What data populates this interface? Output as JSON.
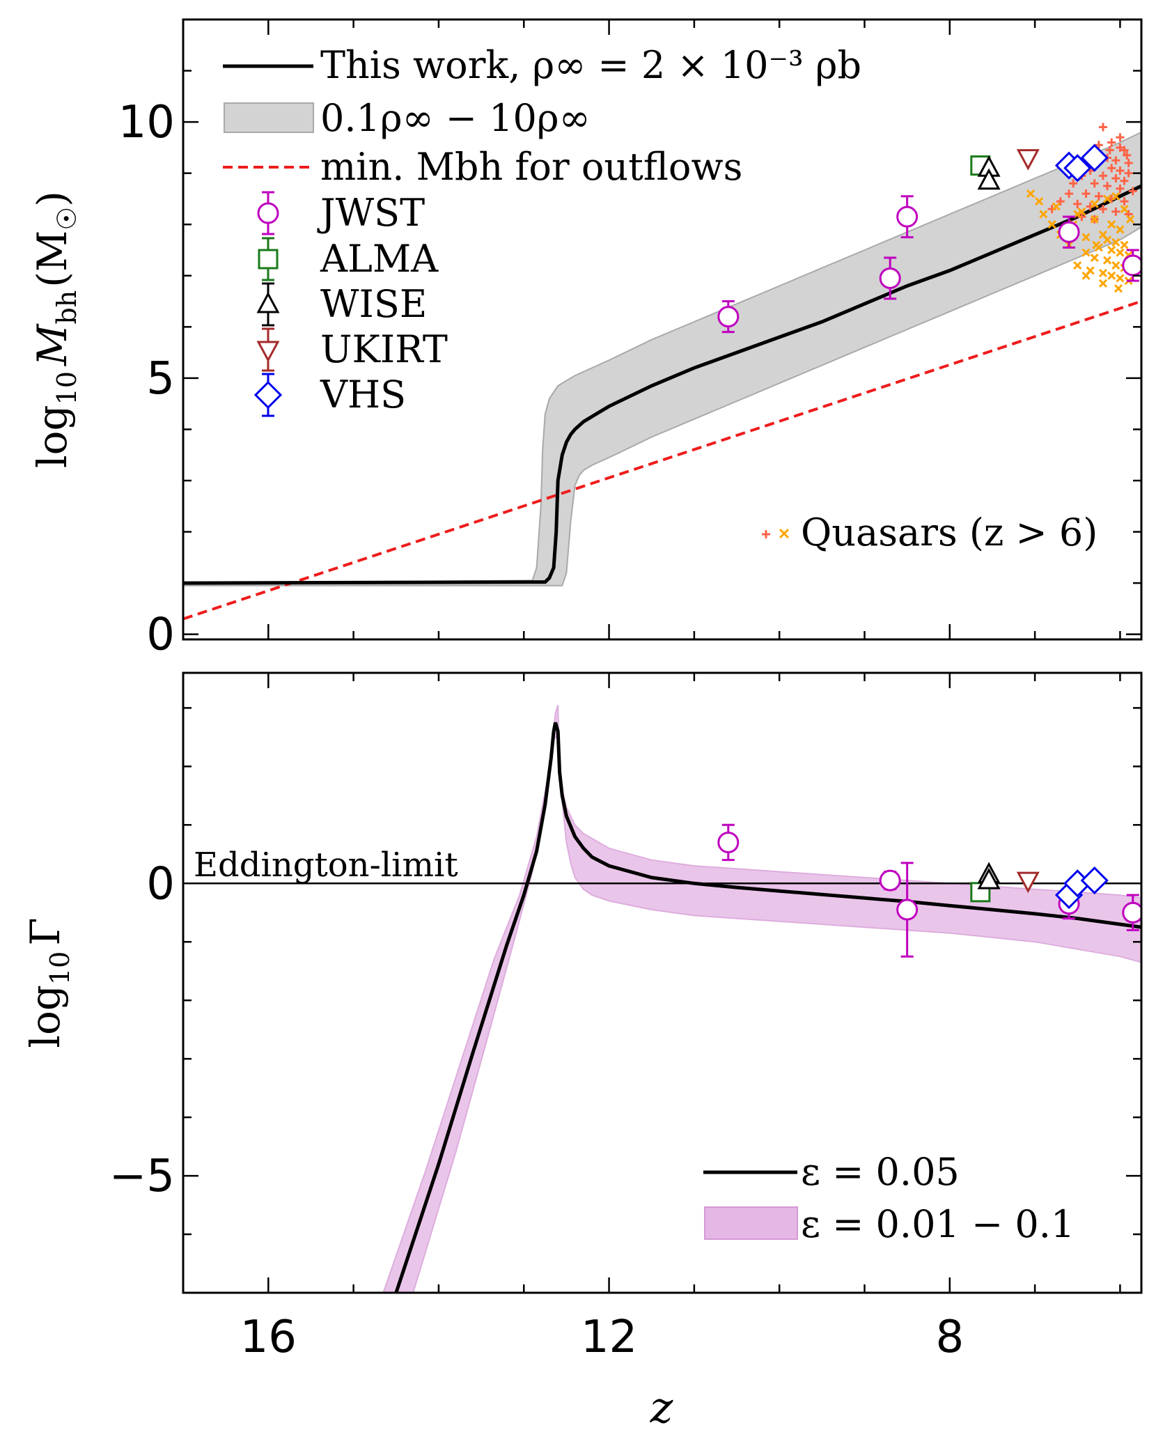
{
  "colors": {
    "model_line": "#000000",
    "rho_band": "#d3d3d3",
    "rho_band_edge": "#a9a9a9",
    "eps_band": "#dda0dd",
    "eps_band_edge": "#c878c8",
    "outflow_line": "#ee1c1c",
    "jwst": "#bf00bf",
    "alma": "#1a7a1a",
    "wise": "#000000",
    "ukirt": "#a52a2a",
    "vhs": "#0000ee",
    "quasar_plus": "#ff6347",
    "quasar_x": "#ffa500"
  },
  "chart_data": [
    {
      "type": "line",
      "panel": "top",
      "xlabel": "z",
      "ylabel": "log10 M_bh (M_sun)",
      "ylabel_main": "log",
      "ylabel_sub": "10",
      "ylabel_var": "M",
      "ylabel_var_sub": "bh",
      "ylabel_unit": "(M",
      "ylabel_unit_sub": "☉",
      "ylabel_close": ")",
      "xlim": [
        17.0,
        5.75
      ],
      "ylim": [
        -0.1,
        12.0
      ],
      "xticks": [
        16,
        12,
        8
      ],
      "yticks": [
        0,
        5,
        10
      ],
      "ytick_labels": [
        "0",
        "5",
        "10"
      ],
      "legend_position": "top-left",
      "legend": {
        "line": "This work,  ρ∞ = 2 × 10⁻³ ρb",
        "band": "0.1ρ∞ − 10ρ∞",
        "outflow": "min.  Mbh  for outflows",
        "jwst": "JWST",
        "alma": "ALMA",
        "wise": "WISE",
        "ukirt": "UKIRT",
        "vhs": "VHS",
        "quasars": "Quasars (z > 6)"
      },
      "series": [
        {
          "name": "This work, ρ∞ = 2×10⁻³ ρb",
          "x": [
            17.0,
            12.75,
            12.7,
            12.65,
            12.62,
            12.6,
            12.55,
            12.5,
            12.45,
            12.4,
            12.3,
            12.2,
            12.0,
            11.5,
            11.0,
            10.5,
            10.0,
            9.5,
            9.0,
            8.5,
            8.0,
            7.5,
            7.0,
            6.5,
            6.0,
            5.75
          ],
          "y": [
            1.0,
            1.02,
            1.1,
            1.3,
            2.0,
            3.0,
            3.5,
            3.75,
            3.9,
            4.0,
            4.15,
            4.25,
            4.45,
            4.85,
            5.2,
            5.5,
            5.8,
            6.1,
            6.45,
            6.8,
            7.1,
            7.45,
            7.8,
            8.15,
            8.55,
            8.75
          ]
        },
        {
          "name": "0.1ρ∞ − 10ρ∞ (upper)",
          "x": [
            17.0,
            12.9,
            12.85,
            12.8,
            12.78,
            12.75,
            12.7,
            12.6,
            12.4,
            12.0,
            11.5,
            11.0,
            10.5,
            10.0,
            9.5,
            9.0,
            8.5,
            8.0,
            7.5,
            7.0,
            6.5,
            6.0,
            5.75
          ],
          "y": [
            1.0,
            1.05,
            1.3,
            2.5,
            3.6,
            4.3,
            4.6,
            4.85,
            5.05,
            5.35,
            5.75,
            6.1,
            6.45,
            6.8,
            7.15,
            7.5,
            7.85,
            8.2,
            8.55,
            8.9,
            9.25,
            9.6,
            9.8
          ]
        },
        {
          "name": "0.1ρ∞ − 10ρ∞ (lower)",
          "x": [
            17.0,
            12.55,
            12.5,
            12.45,
            12.4,
            12.35,
            12.3,
            12.2,
            12.0,
            11.5,
            11.0,
            10.5,
            10.0,
            9.5,
            9.0,
            8.5,
            8.0,
            7.5,
            7.0,
            6.5,
            6.0,
            5.75
          ],
          "y": [
            0.95,
            0.95,
            1.2,
            2.2,
            2.9,
            3.1,
            3.2,
            3.3,
            3.45,
            3.85,
            4.2,
            4.55,
            4.9,
            5.25,
            5.6,
            5.95,
            6.3,
            6.65,
            7.0,
            7.35,
            7.7,
            7.95
          ]
        },
        {
          "name": "min. Mbh for outflows",
          "x": [
            17.0,
            5.75
          ],
          "y": [
            0.3,
            6.5
          ]
        }
      ],
      "points": {
        "jwst": [
          {
            "z": 10.6,
            "y": 6.2,
            "err": 0.3
          },
          {
            "z": 8.7,
            "y": 6.95,
            "err": 0.4
          },
          {
            "z": 8.5,
            "y": 8.15,
            "err": 0.4
          },
          {
            "z": 6.6,
            "y": 7.85,
            "err": 0.3
          },
          {
            "z": 5.85,
            "y": 7.2,
            "err": 0.3
          }
        ],
        "alma": [
          {
            "z": 7.64,
            "y": 9.15
          }
        ],
        "wise": [
          {
            "z": 7.54,
            "y": 9.1
          },
          {
            "z": 7.54,
            "y": 8.85
          }
        ],
        "ukirt": [
          {
            "z": 7.08,
            "y": 9.3
          }
        ],
        "vhs": [
          {
            "z": 6.6,
            "y": 9.15
          },
          {
            "z": 6.5,
            "y": 9.1
          },
          {
            "z": 6.3,
            "y": 9.3
          }
        ]
      },
      "quasars_plus": [
        [
          6.2,
          9.9
        ],
        [
          6.1,
          9.6
        ],
        [
          6.0,
          9.5
        ],
        [
          5.95,
          9.45
        ],
        [
          6.3,
          9.4
        ],
        [
          6.15,
          9.3
        ],
        [
          6.05,
          9.25
        ],
        [
          5.9,
          9.2
        ],
        [
          6.25,
          9.2
        ],
        [
          6.1,
          9.1
        ],
        [
          6.0,
          9.05
        ],
        [
          5.9,
          9.0
        ],
        [
          6.2,
          8.95
        ],
        [
          6.05,
          8.9
        ],
        [
          5.95,
          8.85
        ],
        [
          6.3,
          8.8
        ],
        [
          6.15,
          8.75
        ],
        [
          6.0,
          8.7
        ],
        [
          5.85,
          8.65
        ],
        [
          6.4,
          8.6
        ],
        [
          6.25,
          8.55
        ],
        [
          6.1,
          8.5
        ],
        [
          5.95,
          8.45
        ],
        [
          6.5,
          8.4
        ],
        [
          6.35,
          8.35
        ],
        [
          6.2,
          8.3
        ],
        [
          6.05,
          8.25
        ],
        [
          5.9,
          8.2
        ],
        [
          6.45,
          8.15
        ],
        [
          6.3,
          8.1
        ],
        [
          6.6,
          8.6
        ],
        [
          6.7,
          8.45
        ],
        [
          6.8,
          8.3
        ],
        [
          6.55,
          8.8
        ],
        [
          6.45,
          8.95
        ],
        [
          6.35,
          9.05
        ],
        [
          6.25,
          9.55
        ],
        [
          6.0,
          9.7
        ],
        [
          5.92,
          9.35
        ],
        [
          6.12,
          9.45
        ]
      ],
      "quasars_x": [
        [
          6.5,
          8.2
        ],
        [
          6.3,
          8.1
        ],
        [
          6.1,
          8.0
        ],
        [
          6.0,
          7.9
        ],
        [
          6.2,
          7.8
        ],
        [
          6.4,
          7.75
        ],
        [
          6.15,
          7.7
        ],
        [
          6.05,
          7.65
        ],
        [
          5.95,
          7.6
        ],
        [
          6.25,
          7.55
        ],
        [
          6.1,
          7.5
        ],
        [
          6.0,
          7.45
        ],
        [
          5.9,
          7.4
        ],
        [
          6.3,
          7.35
        ],
        [
          6.15,
          7.3
        ],
        [
          6.05,
          7.2
        ],
        [
          5.95,
          7.15
        ],
        [
          6.35,
          7.1
        ],
        [
          6.2,
          7.05
        ],
        [
          6.1,
          7.0
        ],
        [
          6.0,
          6.95
        ],
        [
          5.9,
          6.9
        ],
        [
          6.5,
          7.2
        ],
        [
          6.4,
          7.0
        ],
        [
          6.6,
          7.6
        ],
        [
          6.7,
          7.8
        ],
        [
          6.8,
          8.0
        ],
        [
          6.9,
          8.2
        ],
        [
          6.95,
          8.45
        ],
        [
          7.05,
          8.6
        ],
        [
          6.75,
          8.35
        ],
        [
          6.55,
          8.0
        ],
        [
          6.45,
          8.25
        ],
        [
          6.3,
          8.4
        ],
        [
          6.15,
          8.5
        ],
        [
          6.05,
          8.55
        ],
        [
          5.95,
          8.3
        ],
        [
          5.88,
          8.1
        ],
        [
          6.2,
          6.85
        ],
        [
          6.02,
          6.75
        ],
        [
          6.4,
          7.45
        ],
        [
          6.28,
          7.6
        ]
      ]
    },
    {
      "type": "line",
      "panel": "bottom",
      "xlabel": "z",
      "ylabel": "log10 Γ",
      "ylabel_main": "log",
      "ylabel_sub": "10",
      "ylabel_var": "Γ",
      "xlim": [
        17.0,
        5.75
      ],
      "ylim": [
        -7.0,
        3.6
      ],
      "xticks": [
        16,
        12,
        8
      ],
      "xtick_labels": [
        "16",
        "12",
        "8"
      ],
      "yticks": [
        -5,
        0
      ],
      "ytick_labels": [
        "−5",
        "0"
      ],
      "eddington_label": "Eddington-limit",
      "legend_position": "bottom-right",
      "legend": {
        "line": "ε = 0.05",
        "band": "ε = 0.01 − 0.1"
      },
      "series": [
        {
          "name": "ε = 0.05",
          "x": [
            14.5,
            14.0,
            13.6,
            13.2,
            13.0,
            12.85,
            12.75,
            12.68,
            12.65,
            12.63,
            12.6,
            12.58,
            12.55,
            12.5,
            12.4,
            12.3,
            12.2,
            12.0,
            11.5,
            11.0,
            10.5,
            10.0,
            9.5,
            9.0,
            8.5,
            8.0,
            7.5,
            7.0,
            6.5,
            6.0,
            5.75
          ],
          "y": [
            -7.0,
            -4.8,
            -2.9,
            -1.05,
            -0.2,
            0.55,
            1.35,
            2.15,
            2.6,
            2.75,
            2.6,
            1.9,
            1.5,
            1.15,
            0.8,
            0.6,
            0.45,
            0.3,
            0.1,
            0.0,
            -0.07,
            -0.13,
            -0.19,
            -0.25,
            -0.31,
            -0.38,
            -0.45,
            -0.52,
            -0.6,
            -0.7,
            -0.75
          ]
        },
        {
          "name": "ε = 0.01 − 0.1 (upper)",
          "x": [
            14.3,
            13.8,
            13.4,
            13.1,
            12.9,
            12.78,
            12.7,
            12.63,
            12.6,
            12.58,
            12.55,
            12.5,
            12.4,
            12.3,
            12.0,
            11.5,
            11.0,
            10.5,
            10.0,
            9.0,
            8.0,
            7.0,
            6.0,
            5.75
          ],
          "y": [
            -7.0,
            -4.6,
            -2.5,
            -0.9,
            0.2,
            1.1,
            2.0,
            2.9,
            3.05,
            2.0,
            1.6,
            1.3,
            1.0,
            0.85,
            0.6,
            0.4,
            0.3,
            0.25,
            0.2,
            0.1,
            0.0,
            -0.1,
            -0.2,
            -0.25
          ]
        },
        {
          "name": "ε = 0.01 − 0.1 (lower)",
          "x": [
            14.65,
            14.15,
            13.75,
            13.35,
            13.05,
            12.85,
            12.72,
            12.65,
            12.6,
            12.55,
            12.5,
            12.45,
            12.4,
            12.3,
            12.2,
            12.0,
            11.5,
            11.0,
            10.5,
            10.0,
            9.0,
            8.0,
            7.0,
            6.0,
            5.75
          ],
          "y": [
            -7.0,
            -4.9,
            -3.1,
            -1.3,
            -0.2,
            0.8,
            1.8,
            2.45,
            2.55,
            1.4,
            0.7,
            0.35,
            0.1,
            -0.1,
            -0.2,
            -0.3,
            -0.45,
            -0.55,
            -0.6,
            -0.65,
            -0.75,
            -0.85,
            -1.0,
            -1.25,
            -1.35
          ]
        }
      ],
      "points": {
        "jwst": [
          {
            "z": 10.6,
            "y": 0.7,
            "err": 0.3
          },
          {
            "z": 8.7,
            "y": 0.05,
            "err": 0.15
          },
          {
            "z": 8.5,
            "y": -0.45,
            "err": 0.8
          },
          {
            "z": 6.6,
            "y": -0.35,
            "err": 0.25
          },
          {
            "z": 5.85,
            "y": -0.5,
            "err": 0.3
          }
        ],
        "alma": [
          {
            "z": 7.64,
            "y": -0.15
          }
        ],
        "wise": [
          {
            "z": 7.54,
            "y": 0.15
          },
          {
            "z": 7.54,
            "y": 0.05
          }
        ],
        "ukirt": [
          {
            "z": 7.08,
            "y": 0.05
          }
        ],
        "vhs": [
          {
            "z": 6.6,
            "y": -0.2
          },
          {
            "z": 6.5,
            "y": 0.0
          },
          {
            "z": 6.3,
            "y": 0.05
          }
        ]
      }
    }
  ]
}
